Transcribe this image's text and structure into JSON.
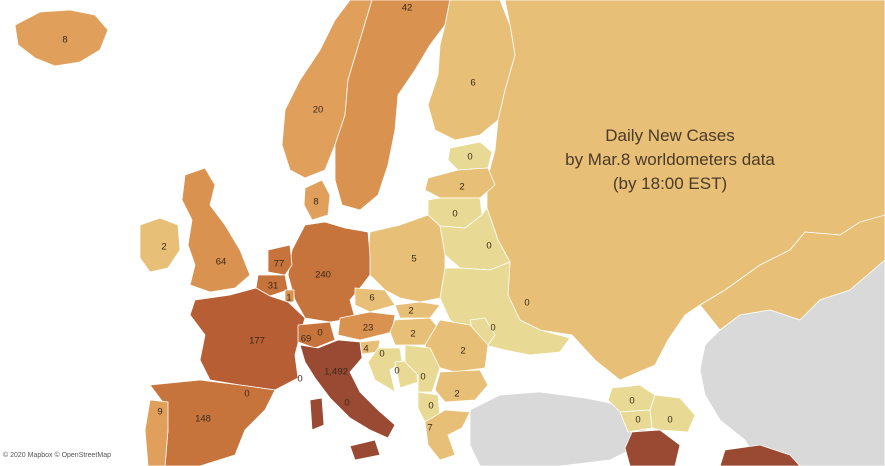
{
  "title_lines": [
    "Daily New Cases",
    "by Mar.8 worldometers data",
    "(by 18:00 EST)"
  ],
  "attribution": "© 2020 Mapbox © OpenStreetMap",
  "colors": {
    "water": "#ffffff",
    "no_data": "#d9d9d9",
    "zero": "#e8da94",
    "low": "#e7bf76",
    "mid": "#d9924f",
    "high": "#c7743c",
    "max": "#9a4a32",
    "border": "#ffffff"
  },
  "countries": [
    {
      "name": "Iceland",
      "label": "8"
    },
    {
      "name": "Norway",
      "label": "20"
    },
    {
      "name": "Sweden",
      "label": "42"
    },
    {
      "name": "Finland",
      "label": "6"
    },
    {
      "name": "Estonia",
      "label": "0"
    },
    {
      "name": "Latvia",
      "label": "2"
    },
    {
      "name": "Lithuania",
      "label": "0"
    },
    {
      "name": "Denmark",
      "label": "8"
    },
    {
      "name": "Ireland",
      "label": "2"
    },
    {
      "name": "United Kingdom",
      "label": "64"
    },
    {
      "name": "Netherlands",
      "label": "77"
    },
    {
      "name": "Belgium",
      "label": "31"
    },
    {
      "name": "Luxembourg",
      "label": "1"
    },
    {
      "name": "Germany",
      "label": "240"
    },
    {
      "name": "Poland",
      "label": "5"
    },
    {
      "name": "Belarus",
      "label": "0"
    },
    {
      "name": "Czechia",
      "label": "6"
    },
    {
      "name": "Slovakia",
      "label": "2"
    },
    {
      "name": "Austria",
      "label": "23"
    },
    {
      "name": "Hungary",
      "label": "2"
    },
    {
      "name": "Romania",
      "label": "2"
    },
    {
      "name": "Moldova",
      "label": "0"
    },
    {
      "name": "Ukraine",
      "label": "0"
    },
    {
      "name": "Switzerland",
      "label": "69"
    },
    {
      "name": "Liechtenstein",
      "label": "0"
    },
    {
      "name": "Slovenia",
      "label": "4"
    },
    {
      "name": "Croatia",
      "label": "0"
    },
    {
      "name": "Bosnia",
      "label": "0"
    },
    {
      "name": "Serbia",
      "label": "0"
    },
    {
      "name": "Bulgaria",
      "label": "2"
    },
    {
      "name": "Albania",
      "label": "0"
    },
    {
      "name": "Greece",
      "label": "7"
    },
    {
      "name": "France",
      "label": "177"
    },
    {
      "name": "Monaco",
      "label": "0"
    },
    {
      "name": "Italy",
      "label": "1,492"
    },
    {
      "name": "San Marino",
      "label": "0"
    },
    {
      "name": "Andorra",
      "label": "0"
    },
    {
      "name": "Spain",
      "label": "148"
    },
    {
      "name": "Portugal",
      "label": "9"
    },
    {
      "name": "Georgia",
      "label": "0"
    },
    {
      "name": "Armenia",
      "label": "0"
    },
    {
      "name": "Azerbaijan",
      "label": "0"
    }
  ]
}
